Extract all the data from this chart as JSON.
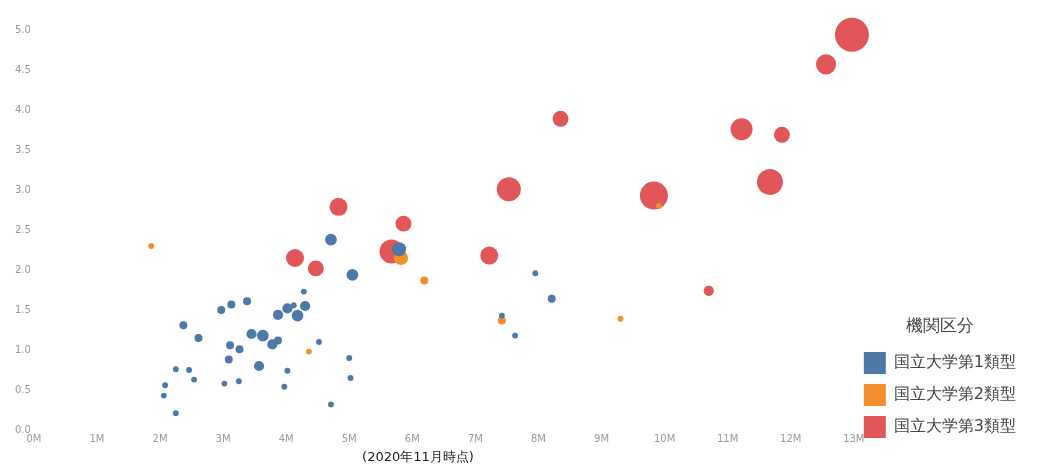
{
  "chart_data": {
    "type": "bubble",
    "legend_title": "機関区分",
    "legend": "bottom right",
    "grid": false,
    "marker": "circle",
    "annotations": [
      "(2020年11月時点)"
    ],
    "xlim": [
      0,
      13
    ],
    "ylim": [
      0,
      5
    ],
    "xticks": [
      {
        "value": 0,
        "label": "0M"
      },
      {
        "value": 1,
        "label": "1M"
      },
      {
        "value": 2,
        "label": "2M"
      },
      {
        "value": 3,
        "label": "3M"
      },
      {
        "value": 4,
        "label": "4M"
      },
      {
        "value": 5,
        "label": "5M"
      },
      {
        "value": 6,
        "label": "6M"
      },
      {
        "value": 7,
        "label": "7M"
      },
      {
        "value": 8,
        "label": "8M"
      },
      {
        "value": 9,
        "label": "9M"
      },
      {
        "value": 10,
        "label": "10M"
      },
      {
        "value": 11,
        "label": "11M"
      },
      {
        "value": 12,
        "label": "12M"
      },
      {
        "value": 13,
        "label": "13M"
      }
    ],
    "yticks": [
      {
        "value": 0,
        "label": "0.0"
      },
      {
        "value": 0.5,
        "label": "0.5"
      },
      {
        "value": 1,
        "label": "1.0"
      },
      {
        "value": 1.5,
        "label": "1.5"
      },
      {
        "value": 2,
        "label": "2.0"
      },
      {
        "value": 2.5,
        "label": "2.5"
      },
      {
        "value": 3,
        "label": "3.0"
      },
      {
        "value": 3.5,
        "label": "3.5"
      },
      {
        "value": 4,
        "label": "4.0"
      },
      {
        "value": 4.5,
        "label": "4.5"
      },
      {
        "value": 5,
        "label": "5.0"
      }
    ],
    "series": [
      {
        "name": "国立大学第1類型",
        "color": "#4e79a7",
        "x": [
          4.71,
          5.79,
          5.05,
          4.28,
          3.13,
          2.97,
          3.38,
          4.02,
          4.12,
          4.3,
          3.87,
          4.18,
          2.37,
          2.61,
          3.45,
          3.63,
          3.78,
          3.87,
          3.11,
          3.26,
          4.52,
          3.09,
          3.57,
          5.0,
          2.25,
          2.46,
          2.54,
          3.02,
          3.25,
          2.08,
          2.06,
          4.02,
          3.97,
          5.02,
          4.71,
          2.25,
          7.95,
          8.21,
          7.42,
          7.63
        ],
        "values": [
          2.38,
          2.26,
          1.94,
          1.73,
          1.57,
          1.5,
          1.61,
          1.52,
          1.56,
          1.55,
          1.44,
          1.43,
          1.31,
          1.15,
          1.2,
          1.18,
          1.07,
          1.12,
          1.06,
          1.01,
          1.1,
          0.88,
          0.8,
          0.9,
          0.76,
          0.75,
          0.63,
          0.58,
          0.61,
          0.56,
          0.43,
          0.74,
          0.54,
          0.65,
          0.32,
          0.21,
          1.96,
          1.64,
          1.43,
          1.18
        ],
        "sizes": [
          0.12,
          0.17,
          0.12,
          0.03,
          0.055,
          0.055,
          0.055,
          0.09,
          0.03,
          0.09,
          0.09,
          0.12,
          0.055,
          0.055,
          0.09,
          0.12,
          0.09,
          0.055,
          0.055,
          0.055,
          0.03,
          0.055,
          0.09,
          0.03,
          0.03,
          0.03,
          0.03,
          0.03,
          0.03,
          0.03,
          0.03,
          0.03,
          0.03,
          0.03,
          0.03,
          0.03,
          0.03,
          0.055,
          0.03,
          0.03
        ]
      },
      {
        "name": "国立大学第2類型",
        "color": "#f28e2b",
        "x": [
          1.86,
          5.82,
          9.91,
          6.19,
          7.42,
          9.3,
          4.36
        ],
        "values": [
          2.3,
          2.15,
          2.8,
          1.87,
          1.37,
          1.39,
          0.98
        ],
        "sizes": [
          0.03,
          0.17,
          0.03,
          0.055,
          0.055,
          0.03,
          0.03
        ]
      },
      {
        "name": "国立大学第3類型",
        "color": "#e15759",
        "x": [
          12.97,
          12.56,
          8.35,
          11.22,
          11.86,
          9.83,
          11.67,
          7.53,
          4.83,
          5.86,
          4.14,
          4.47,
          5.67,
          7.22,
          10.7
        ],
        "values": [
          4.94,
          4.57,
          3.89,
          3.76,
          3.69,
          2.93,
          3.1,
          3.01,
          2.79,
          2.58,
          2.15,
          2.02,
          2.23,
          2.18,
          1.74
        ],
        "sizes": [
          1,
          0.35,
          0.22,
          0.42,
          0.22,
          0.68,
          0.58,
          0.5,
          0.28,
          0.22,
          0.28,
          0.22,
          0.5,
          0.28,
          0.09
        ]
      }
    ]
  }
}
